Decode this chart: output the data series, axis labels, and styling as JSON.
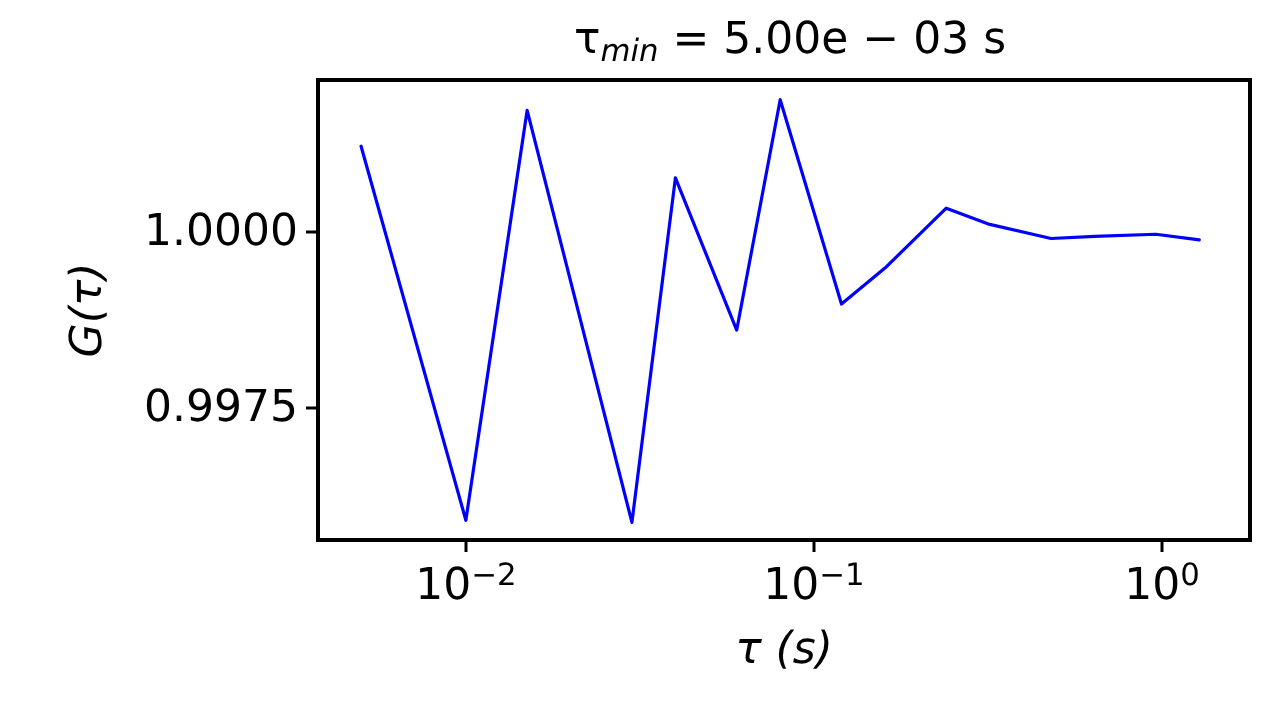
{
  "chart_data": {
    "type": "line",
    "title": "τ$_{min}$ = 5.00e − 03 s",
    "xlabel": "τ (s)",
    "ylabel": "G(τ)",
    "x": [
      0.005,
      0.01,
      0.015,
      0.03,
      0.04,
      0.06,
      0.08,
      0.12,
      0.16,
      0.24,
      0.32,
      0.48,
      0.64,
      0.96,
      1.28
    ],
    "series": [
      {
        "color": "#0000ff",
        "values": [
          1.00122,
          0.99591,
          1.00173,
          0.99588,
          1.00077,
          0.99861,
          1.00188,
          0.99898,
          0.99949,
          1.00034,
          1.00011,
          0.99991,
          0.99994,
          0.99997,
          0.99989
        ]
      }
    ],
    "log": "x",
    "xlim": [
      0.00376,
      1.79
    ],
    "ylim": [
      0.99563,
      1.00216
    ],
    "xticks": [
      {
        "value": 0.01,
        "label": "10$^{−2}$"
      },
      {
        "value": 0.1,
        "label": "10$^{−1}$"
      },
      {
        "value": 1,
        "label": "10$^{0}$"
      }
    ],
    "yticks": [
      {
        "value": 0.9975,
        "label": "0.9975"
      },
      {
        "value": 1,
        "label": "1.0000"
      }
    ],
    "grid": false,
    "marker": "none",
    "line_style": "solid"
  }
}
